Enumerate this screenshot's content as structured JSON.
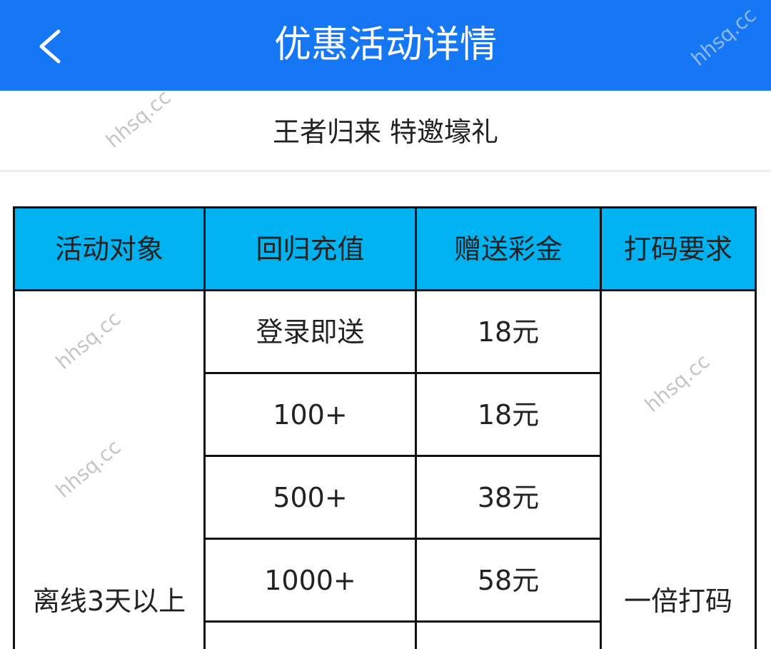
{
  "header": {
    "title": "优惠活动详情",
    "back_icon": "chevron-left-icon",
    "color": "#1677f5"
  },
  "subtitle": "王者归来 特邀壕礼",
  "table": {
    "header_color": "#00b2f0",
    "columns": [
      "活动对象",
      "回归充值",
      "赠送彩金",
      "打码要求"
    ],
    "target": "离线3天以上",
    "rows": [
      {
        "recharge": "登录即送",
        "bonus": "18元"
      },
      {
        "recharge": "100+",
        "bonus": "18元"
      },
      {
        "recharge": "500+",
        "bonus": "38元"
      },
      {
        "recharge": "1000+",
        "bonus": "58元"
      },
      {
        "recharge": "",
        "bonus": ""
      }
    ],
    "wagering": "一倍打码"
  },
  "watermark": "hhsq.cc"
}
